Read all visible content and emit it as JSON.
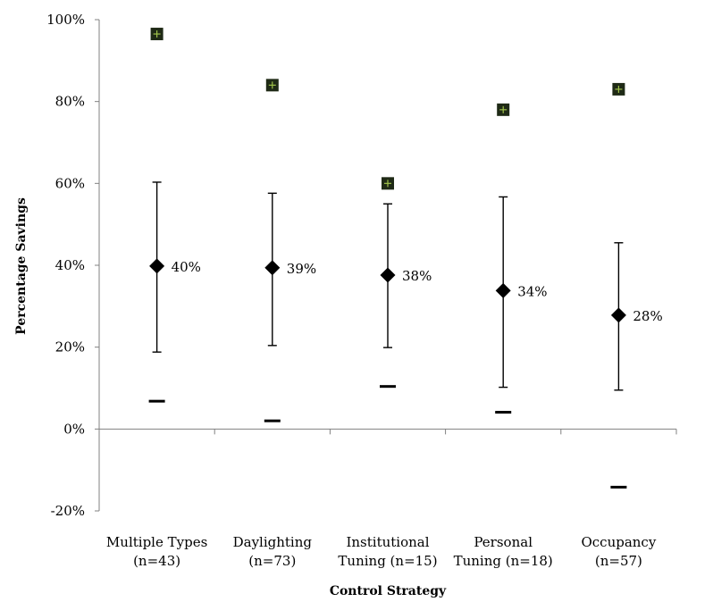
{
  "chart_data": {
    "type": "scatter",
    "variant": "range-with-mean",
    "title": "",
    "xlabel": "Control Strategy",
    "ylabel": "Percentage Savings",
    "ylim": [
      -20,
      100
    ],
    "yticks": [
      -20,
      0,
      20,
      40,
      60,
      80,
      100
    ],
    "ytick_labels": [
      "-20%",
      "0%",
      "20%",
      "40%",
      "60%",
      "80%",
      "100%"
    ],
    "grid": false,
    "legend": "none",
    "categories": [
      {
        "line1": "Multiple Types",
        "line2": "(n=43)"
      },
      {
        "line1": "Daylighting",
        "line2": "(n=73)"
      },
      {
        "line1": "Institutional",
        "line2": "Tuning (n=15)"
      },
      {
        "line1": "Personal",
        "line2": "Tuning (n=18)"
      },
      {
        "line1": "Occupancy",
        "line2": "(n=57)"
      }
    ],
    "series": [
      {
        "role": "max",
        "marker": "square",
        "values": [
          96.5,
          84,
          60,
          78,
          83
        ]
      },
      {
        "role": "upper_bar",
        "values": [
          60.3,
          57.6,
          55,
          56.7,
          45.5
        ]
      },
      {
        "role": "mean",
        "marker": "diamond",
        "values": [
          39.8,
          39.4,
          37.6,
          33.8,
          27.8
        ]
      },
      {
        "role": "lower_bar",
        "values": [
          18.8,
          20.4,
          19.9,
          10.2,
          9.5
        ]
      },
      {
        "role": "min",
        "marker": "dash",
        "values": [
          6.8,
          2.0,
          10.4,
          4.1,
          -14.2
        ]
      }
    ],
    "data_labels": [
      "40%",
      "39%",
      "38%",
      "34%",
      "28%"
    ],
    "colors": {
      "marker": "#000000",
      "max_marker_fill": "#1f2a16",
      "max_marker_cross": "#9fc24a",
      "axis": "#808080"
    }
  }
}
